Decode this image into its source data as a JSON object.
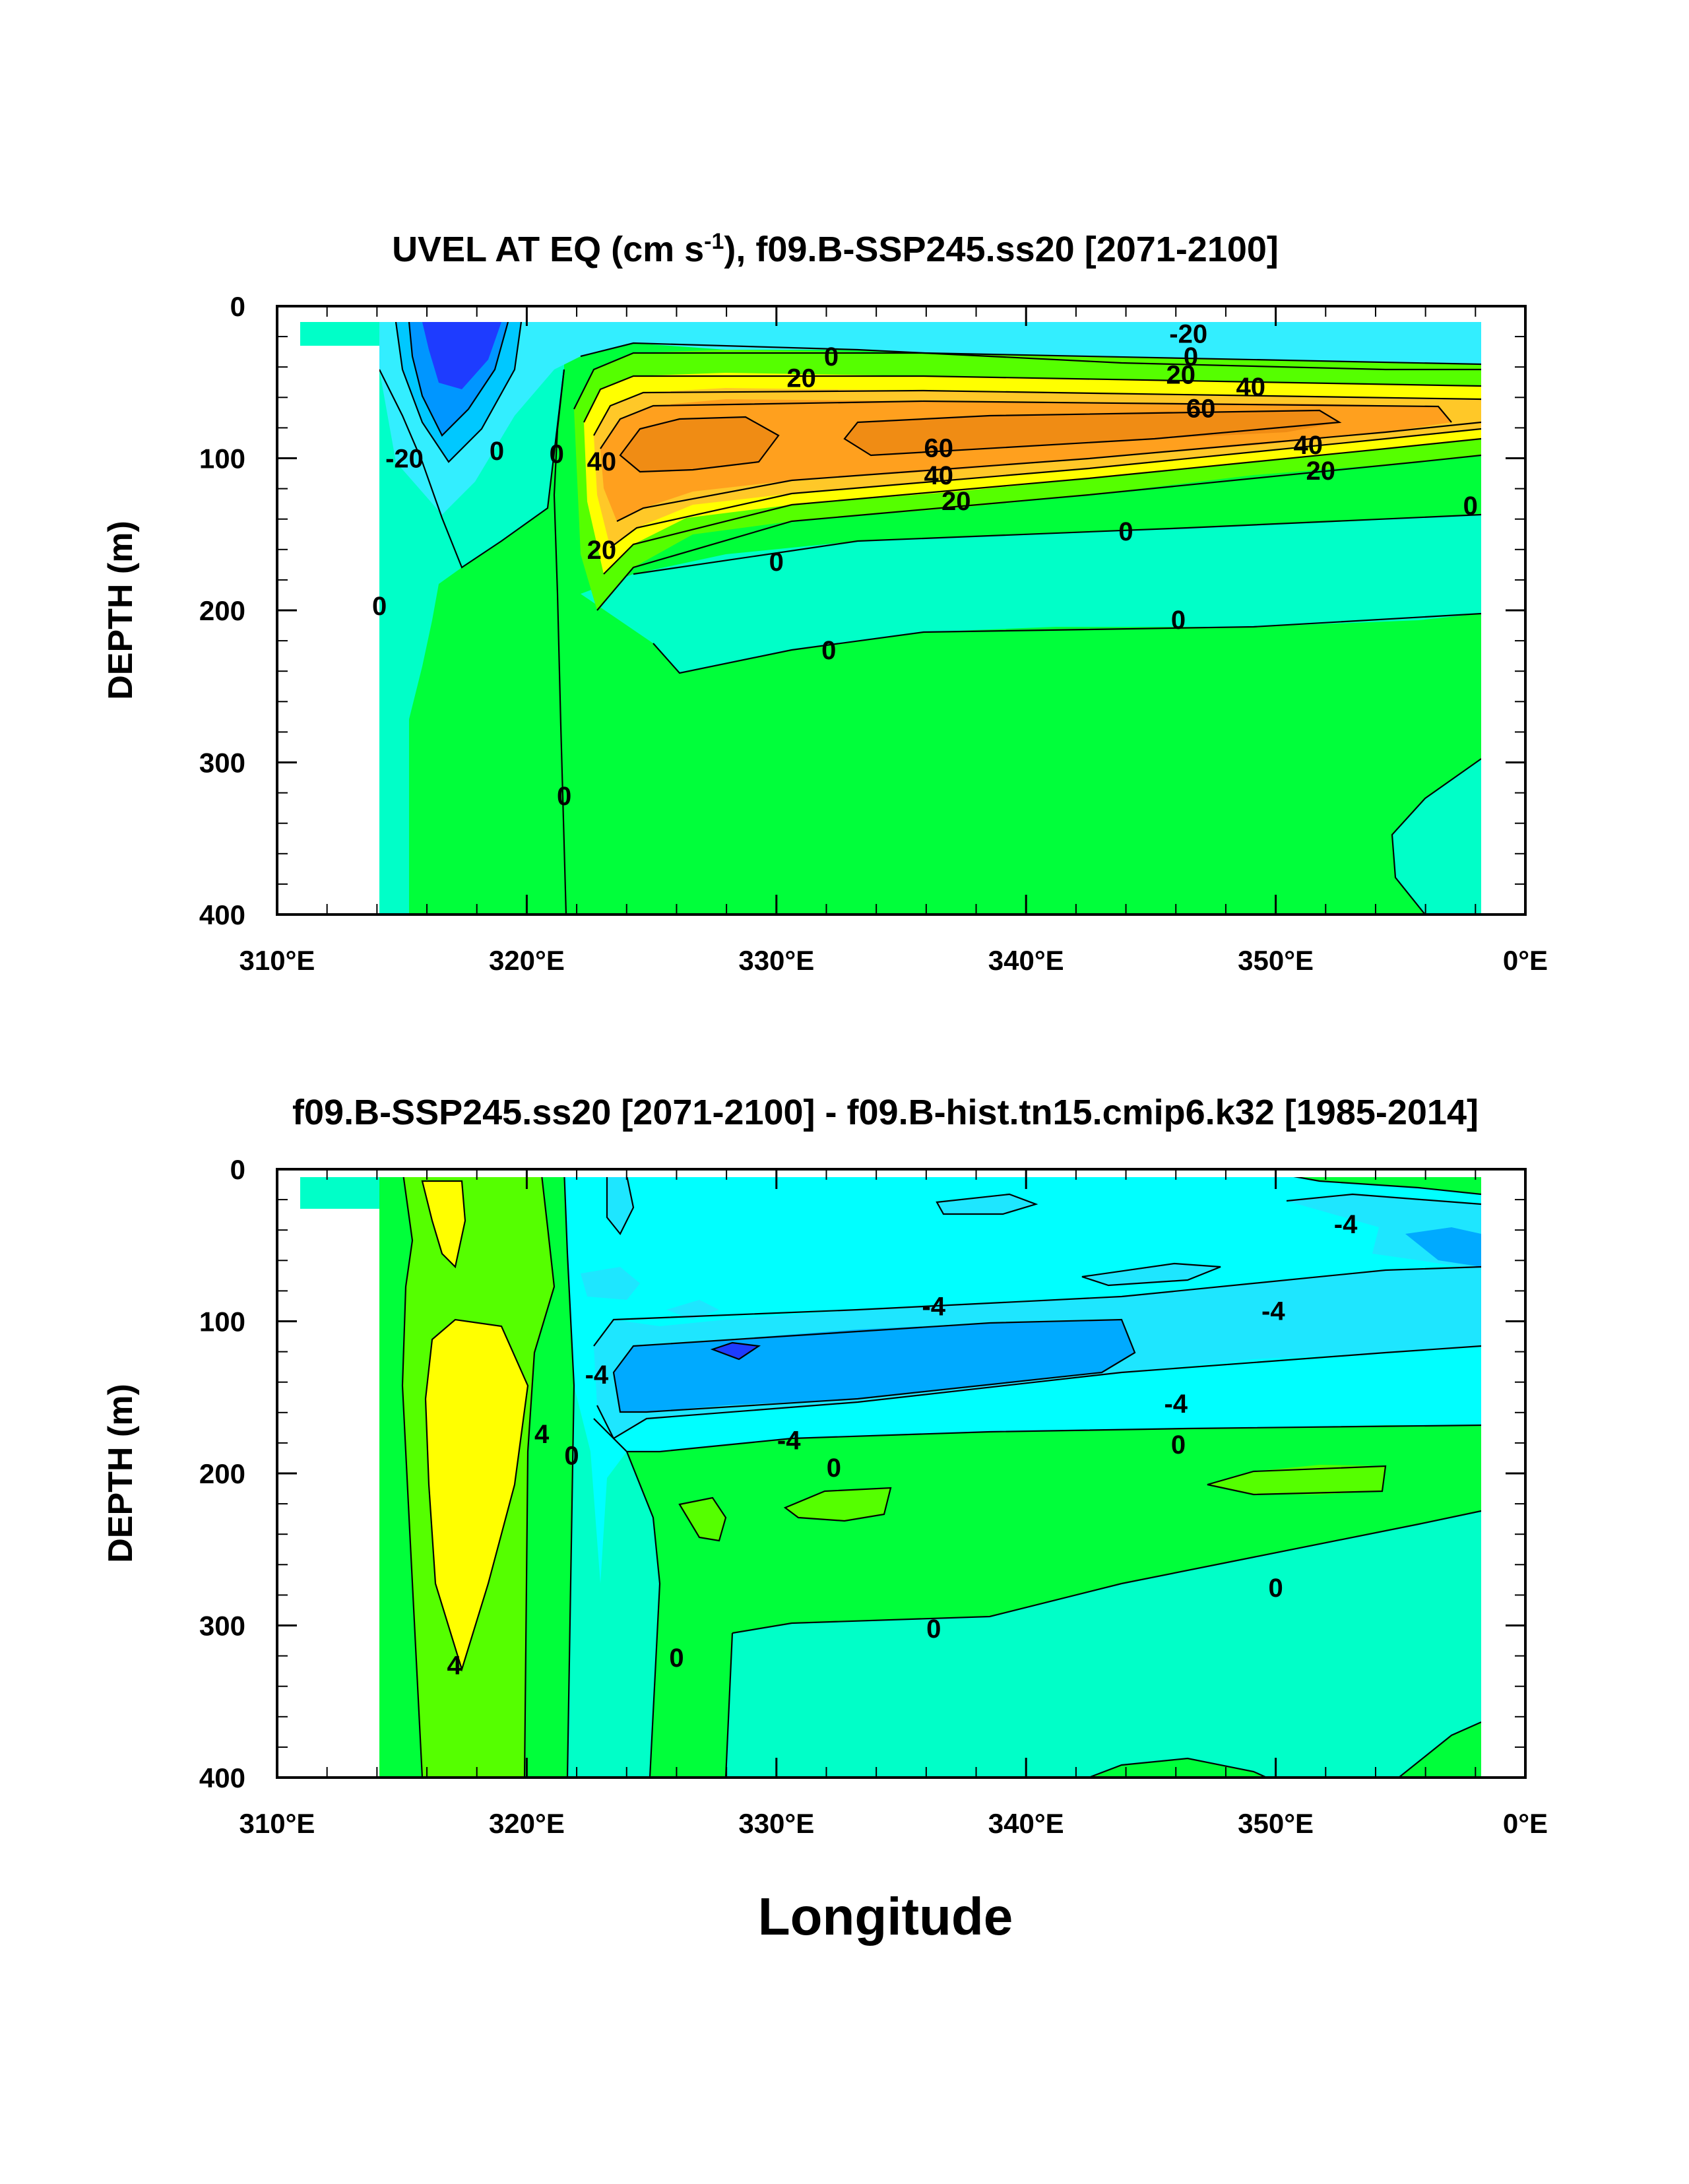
{
  "chart_data": [
    {
      "type": "contour",
      "title_main": "UVEL AT EQ (cm s",
      "title_sup": "-1",
      "title_rest": "), f09.B-SSP245.ss20 [2071-2100]",
      "ylabel": "DEPTH (m)",
      "xlabel": "",
      "x_ticks": [
        "310°E",
        "320°E",
        "330°E",
        "340°E",
        "350°E",
        "0°E"
      ],
      "x_tick_values": [
        310,
        320,
        330,
        340,
        350,
        360
      ],
      "y_ticks": [
        "0",
        "100",
        "200",
        "300",
        "400"
      ],
      "y_tick_values": [
        0,
        100,
        200,
        300,
        400
      ],
      "xlim": [
        310,
        360
      ],
      "ylim": [
        400,
        0
      ],
      "contour_labels": [
        {
          "text": "-20",
          "lon": 346.5,
          "depth": 18
        },
        {
          "text": "0",
          "lon": 332.2,
          "depth": 33
        },
        {
          "text": "0",
          "lon": 346.6,
          "depth": 33
        },
        {
          "text": "20",
          "lon": 331.0,
          "depth": 47
        },
        {
          "text": "20",
          "lon": 346.2,
          "depth": 45
        },
        {
          "text": "40",
          "lon": 349.0,
          "depth": 53
        },
        {
          "text": "60",
          "lon": 347.0,
          "depth": 67
        },
        {
          "text": "60",
          "lon": 336.5,
          "depth": 93
        },
        {
          "text": "40",
          "lon": 351.3,
          "depth": 91
        },
        {
          "text": "40",
          "lon": 336.5,
          "depth": 111
        },
        {
          "text": "20",
          "lon": 351.8,
          "depth": 108
        },
        {
          "text": "20",
          "lon": 337.2,
          "depth": 128
        },
        {
          "text": "0",
          "lon": 318.8,
          "depth": 95
        },
        {
          "text": "-20",
          "lon": 315.1,
          "depth": 100
        },
        {
          "text": "0",
          "lon": 321.2,
          "depth": 97
        },
        {
          "text": "40",
          "lon": 323.0,
          "depth": 102
        },
        {
          "text": "20",
          "lon": 323.0,
          "depth": 160
        },
        {
          "text": "0",
          "lon": 330.0,
          "depth": 168
        },
        {
          "text": "0",
          "lon": 344.0,
          "depth": 148
        },
        {
          "text": "0",
          "lon": 357.8,
          "depth": 131
        },
        {
          "text": "0",
          "lon": 314.1,
          "depth": 197
        },
        {
          "text": "0",
          "lon": 346.1,
          "depth": 206
        },
        {
          "text": "0",
          "lon": 332.1,
          "depth": 226
        },
        {
          "text": "0",
          "lon": 321.5,
          "depth": 322
        }
      ]
    },
    {
      "type": "contour",
      "title_main": "f09.B-SSP245.ss20 [2071-2100] - f09.B-hist.tn15.cmip6.k32 [1985-2014]",
      "title_sup": "",
      "title_rest": "",
      "ylabel": "DEPTH (m)",
      "xlabel": "Longitude",
      "x_ticks": [
        "310°E",
        "320°E",
        "330°E",
        "340°E",
        "350°E",
        "0°E"
      ],
      "x_tick_values": [
        310,
        320,
        330,
        340,
        350,
        360
      ],
      "y_ticks": [
        "0",
        "100",
        "200",
        "300",
        "400"
      ],
      "y_tick_values": [
        0,
        100,
        200,
        300,
        400
      ],
      "xlim": [
        310,
        360
      ],
      "ylim": [
        400,
        0
      ],
      "contour_labels": [
        {
          "text": "-4",
          "lon": 352.8,
          "depth": 36
        },
        {
          "text": "-4",
          "lon": 336.3,
          "depth": 90
        },
        {
          "text": "-4",
          "lon": 349.9,
          "depth": 93
        },
        {
          "text": "-4",
          "lon": 322.8,
          "depth": 135
        },
        {
          "text": "-4",
          "lon": 346.0,
          "depth": 154
        },
        {
          "text": "4",
          "lon": 320.6,
          "depth": 174
        },
        {
          "text": "-4",
          "lon": 330.5,
          "depth": 178
        },
        {
          "text": "0",
          "lon": 321.8,
          "depth": 188
        },
        {
          "text": "0",
          "lon": 346.1,
          "depth": 181
        },
        {
          "text": "0",
          "lon": 332.3,
          "depth": 196
        },
        {
          "text": "0",
          "lon": 350.0,
          "depth": 275
        },
        {
          "text": "0",
          "lon": 336.3,
          "depth": 302
        },
        {
          "text": "0",
          "lon": 326.0,
          "depth": 321
        },
        {
          "text": "4",
          "lon": 317.1,
          "depth": 326
        }
      ]
    }
  ]
}
